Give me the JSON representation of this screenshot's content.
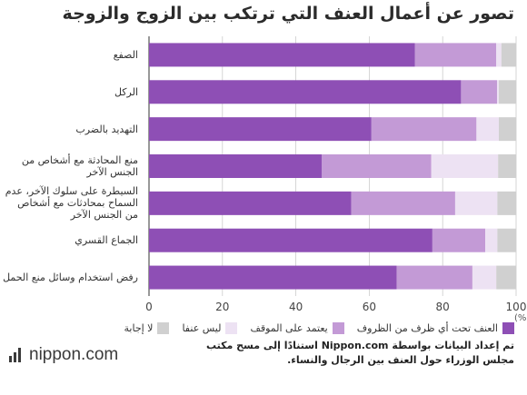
{
  "chart_data": {
    "type": "bar",
    "orientation": "horizontal",
    "stacked": true,
    "title": "تصور عن أعمال العنف التي ترتكب بين الزوج والزوجة",
    "unit": "(%)",
    "categories": [
      "الصفع",
      "الركل",
      "التهديد بالضرب",
      "منع المحادثة مع أشخاص من الجنس الآخر",
      "السيطرة على سلوك الآخر، عدم السماح بمحادثات مع أشخاص من الجنس الآخر",
      "الجماع القسري",
      "رفض استخدام وسائل منع الحمل"
    ],
    "series": [
      {
        "name": "العنف تحت أي ظرف من الظروف",
        "color": "#8e4fb5",
        "values": [
          72.4,
          85.0,
          60.6,
          47.1,
          55.1,
          77.2,
          67.5
        ]
      },
      {
        "name": "يعتمد على الموقف",
        "color": "#c39ad6",
        "values": [
          22.2,
          9.8,
          28.6,
          29.8,
          28.3,
          14.4,
          20.6
        ]
      },
      {
        "name": "ليس عنفا",
        "color": "#ede2f3",
        "values": [
          1.4,
          0.5,
          6.1,
          18.2,
          11.5,
          3.3,
          6.5
        ]
      },
      {
        "name": "لا إجابة",
        "color": "#d0d0d0",
        "values": [
          4.0,
          4.7,
          4.7,
          4.9,
          5.1,
          5.1,
          5.4
        ]
      }
    ],
    "xlim": [
      0,
      100
    ],
    "xticks": [
      0,
      20,
      40,
      60,
      80,
      100
    ],
    "grid": true,
    "legend_position": "bottom"
  },
  "footer": {
    "logo_text": "nippon.com",
    "source": "تم إعداد البيانات بواسطة Nippon.com استنادًا إلى مسح مكتب مجلس الوزراء حول العنف بين الرجال والنساء."
  }
}
